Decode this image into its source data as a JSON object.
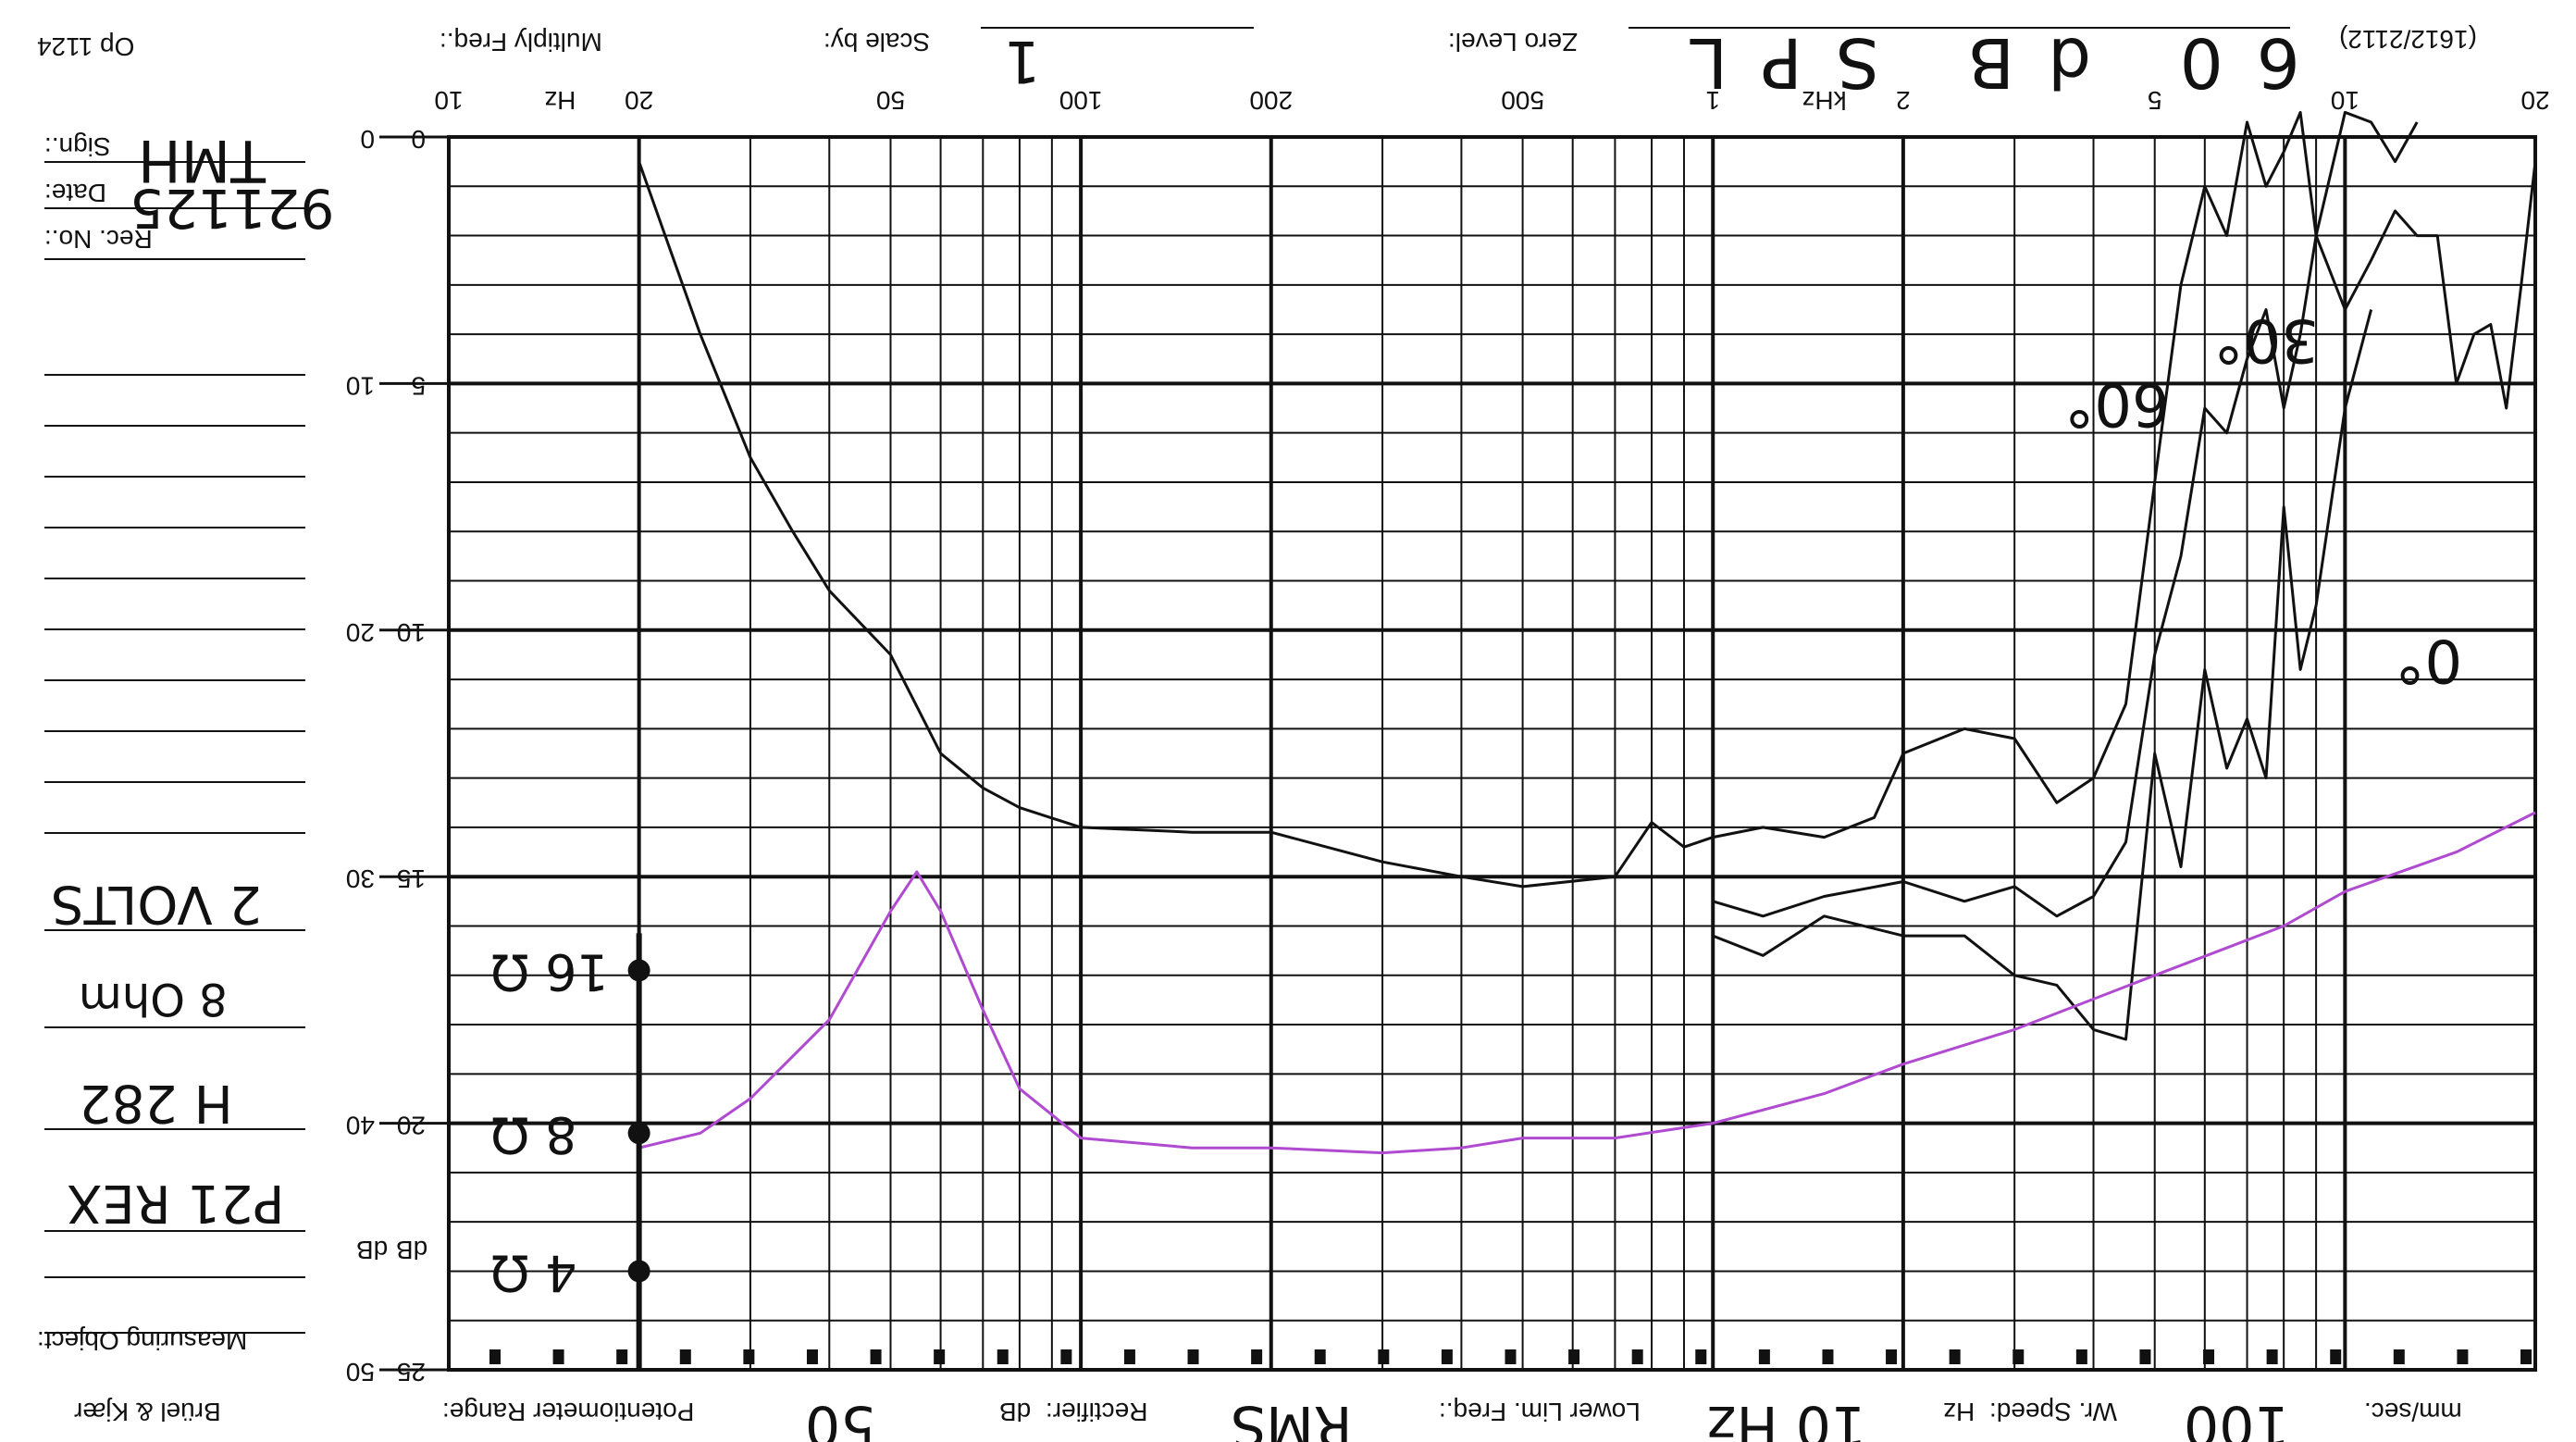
{
  "header": {
    "form_id": "Op 1124",
    "multiply_freq_label": "Multiply Freq.:",
    "scale_by_label": "Scale by:",
    "scale_by_value": "1",
    "zero_level_label": "Zero Level:",
    "zero_level_value": "60 dB SPL",
    "ref_label": "(1612/2112)"
  },
  "sidebar": {
    "sign_label": "Sign.:",
    "sign_value": "TMH",
    "date_label": "Date:",
    "date_value": "921125",
    "rec_no_label": "Rec. No.:",
    "notes": [
      "2 VOLTS",
      "8 Ohm",
      "H 282",
      "P21 REX"
    ],
    "measuring_object_label": "Measuring Object:",
    "brand": "Brüel & Kjær",
    "db_label_left": "dB",
    "db_label_right": "dB"
  },
  "footer": {
    "pot_range_label": "Potentiometer Range:",
    "pot_range_value": "50",
    "db_unit": "dB",
    "rectifier_label": "Rectifier:",
    "rectifier_value": "RMS",
    "lower_lim_label": "Lower Lim. Freq.:",
    "lower_lim_value": "10 Hz",
    "hz_unit": "Hz",
    "wr_speed_label": "Wr. Speed:",
    "wr_speed_value": "100",
    "mm_unit": "mm/sec."
  },
  "chart_data": {
    "type": "line",
    "x_scale": "log",
    "x_range_hz": [
      10,
      20000
    ],
    "x_tick_labels": [
      {
        "hz": 10,
        "label": "10"
      },
      {
        "hz": 15,
        "label": "Hz"
      },
      {
        "hz": 20,
        "label": "20"
      },
      {
        "hz": 50,
        "label": "50"
      },
      {
        "hz": 100,
        "label": "100"
      },
      {
        "hz": 200,
        "label": "200"
      },
      {
        "hz": 500,
        "label": "500"
      },
      {
        "hz": 1000,
        "label": "1"
      },
      {
        "hz": 1500,
        "label": "kHz"
      },
      {
        "hz": 2000,
        "label": "2"
      },
      {
        "hz": 5000,
        "label": "5"
      },
      {
        "hz": 10000,
        "label": "10"
      },
      {
        "hz": 20000,
        "label": "20"
      }
    ],
    "y_level_range": [
      0,
      25
    ],
    "y_left_ticks": [
      {
        "level": 0,
        "label": "0"
      },
      {
        "level": 5,
        "label": "10"
      },
      {
        "level": 10,
        "label": "20"
      },
      {
        "level": 15,
        "label": "30"
      },
      {
        "level": 20,
        "label": "40"
      },
      {
        "level": 25,
        "label": "50"
      }
    ],
    "y_right_ticks": [
      {
        "level": 0,
        "label": "0"
      },
      {
        "level": 5,
        "label": "5"
      },
      {
        "level": 10,
        "label": "10"
      },
      {
        "level": 15,
        "label": "15"
      },
      {
        "level": 20,
        "label": "20"
      },
      {
        "level": 25,
        "label": "25"
      }
    ],
    "impedance_ref_markers": [
      {
        "level": 16.9,
        "label": "16 Ω"
      },
      {
        "level": 20.2,
        "label": "8 Ω"
      },
      {
        "level": 23.0,
        "label": "4 Ω"
      }
    ],
    "curve_labels": [
      {
        "text": "0°",
        "hz": 12000,
        "level": 11
      },
      {
        "text": "30°",
        "hz": 6200,
        "level": 4.5
      },
      {
        "text": "60°",
        "hz": 3600,
        "level": 5.8
      }
    ],
    "series": [
      {
        "name": "0°",
        "color": "#111111",
        "points": [
          [
            20,
            0.5
          ],
          [
            22,
            2
          ],
          [
            25,
            4
          ],
          [
            30,
            6.5
          ],
          [
            35,
            8
          ],
          [
            40,
            9.2
          ],
          [
            50,
            10.5
          ],
          [
            60,
            12.5
          ],
          [
            70,
            13.2
          ],
          [
            80,
            13.6
          ],
          [
            100,
            14
          ],
          [
            150,
            14.1
          ],
          [
            200,
            14.1
          ],
          [
            300,
            14.7
          ],
          [
            400,
            15
          ],
          [
            500,
            15.2
          ],
          [
            700,
            15
          ],
          [
            800,
            13.9
          ],
          [
            900,
            14.4
          ],
          [
            1000,
            14.2
          ],
          [
            1200,
            14
          ],
          [
            1500,
            14.2
          ],
          [
            1800,
            13.8
          ],
          [
            2000,
            12.5
          ],
          [
            2500,
            12
          ],
          [
            3000,
            12.2
          ],
          [
            3500,
            13.5
          ],
          [
            4000,
            13
          ],
          [
            4500,
            11.5
          ],
          [
            5000,
            7
          ],
          [
            5500,
            3
          ],
          [
            6000,
            1
          ],
          [
            6500,
            2
          ],
          [
            7000,
            -0.3
          ],
          [
            7500,
            1
          ],
          [
            8000,
            0.3
          ],
          [
            8500,
            -0.5
          ],
          [
            9000,
            2
          ],
          [
            10000,
            -0.5
          ],
          [
            11000,
            -0.3
          ],
          [
            12000,
            0.5
          ],
          [
            13000,
            -0.3
          ]
        ]
      },
      {
        "name": "30°",
        "color": "#111111",
        "points": [
          [
            1000,
            15.5
          ],
          [
            1200,
            15.8
          ],
          [
            1500,
            15.4
          ],
          [
            2000,
            15.1
          ],
          [
            2500,
            15.5
          ],
          [
            3000,
            15.2
          ],
          [
            3500,
            15.8
          ],
          [
            4000,
            15.4
          ],
          [
            4500,
            14.3
          ],
          [
            5000,
            10.5
          ],
          [
            5500,
            8.5
          ],
          [
            6000,
            5.5
          ],
          [
            6500,
            6
          ],
          [
            7000,
            4.5
          ],
          [
            7500,
            3.5
          ],
          [
            8000,
            5.5
          ],
          [
            8500,
            4
          ],
          [
            9000,
            2
          ],
          [
            10000,
            3.5
          ],
          [
            11000,
            2.5
          ],
          [
            12000,
            1.5
          ],
          [
            13000,
            2
          ],
          [
            14000,
            2
          ],
          [
            15000,
            5
          ],
          [
            16000,
            4
          ],
          [
            17000,
            3.8
          ],
          [
            18000,
            5.5
          ],
          [
            19000,
            3
          ],
          [
            20000,
            0.5
          ]
        ]
      },
      {
        "name": "60°",
        "color": "#111111",
        "points": [
          [
            1000,
            16.2
          ],
          [
            1200,
            16.6
          ],
          [
            1500,
            15.8
          ],
          [
            2000,
            16.2
          ],
          [
            2500,
            16.2
          ],
          [
            3000,
            17
          ],
          [
            3500,
            17.2
          ],
          [
            4000,
            18.1
          ],
          [
            4500,
            18.3
          ],
          [
            5000,
            12.5
          ],
          [
            5500,
            14.8
          ],
          [
            6000,
            10.8
          ],
          [
            6500,
            12.8
          ],
          [
            7000,
            11.8
          ],
          [
            7500,
            13
          ],
          [
            8000,
            7.5
          ],
          [
            8500,
            10.8
          ],
          [
            9000,
            9.5
          ],
          [
            10000,
            5.5
          ],
          [
            11000,
            3.5
          ]
        ]
      },
      {
        "name": "impedance",
        "color": "#b04ad0",
        "points": [
          [
            20,
            20.5
          ],
          [
            25,
            20.2
          ],
          [
            30,
            19.5
          ],
          [
            40,
            17.9
          ],
          [
            50,
            15.7
          ],
          [
            55,
            14.9
          ],
          [
            60,
            15.7
          ],
          [
            70,
            17.7
          ],
          [
            80,
            19.3
          ],
          [
            100,
            20.3
          ],
          [
            150,
            20.5
          ],
          [
            200,
            20.5
          ],
          [
            300,
            20.6
          ],
          [
            400,
            20.5
          ],
          [
            500,
            20.3
          ],
          [
            700,
            20.3
          ],
          [
            1000,
            20
          ],
          [
            1500,
            19.4
          ],
          [
            2000,
            18.8
          ],
          [
            3000,
            18.1
          ],
          [
            5000,
            17
          ],
          [
            8000,
            16
          ],
          [
            10000,
            15.3
          ],
          [
            15000,
            14.5
          ],
          [
            20000,
            13.7
          ]
        ]
      }
    ]
  }
}
